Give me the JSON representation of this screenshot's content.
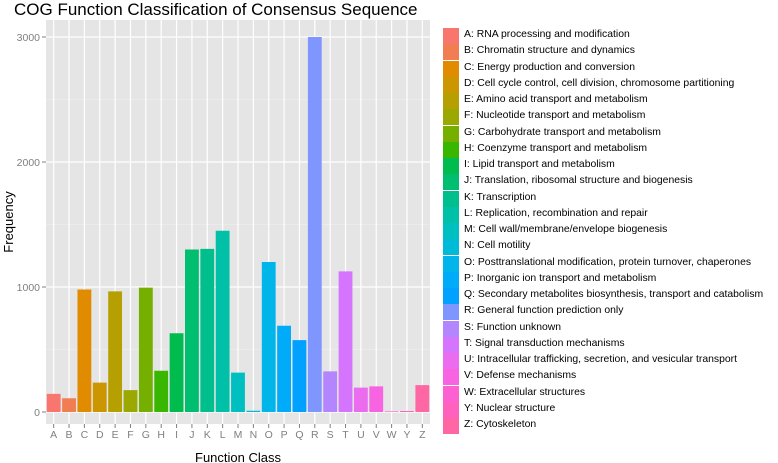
{
  "chart_data": {
    "type": "bar",
    "title": "COG Function Classification of Consensus Sequence",
    "xlabel": "Function Class",
    "ylabel": "Frequency",
    "ylim": [
      0,
      3100
    ],
    "yticks": [
      0,
      1000,
      2000,
      3000
    ],
    "grid": true,
    "legend_position": "right",
    "categories": [
      "A",
      "B",
      "C",
      "D",
      "E",
      "F",
      "G",
      "H",
      "I",
      "J",
      "K",
      "L",
      "M",
      "N",
      "O",
      "P",
      "Q",
      "R",
      "S",
      "T",
      "U",
      "V",
      "W",
      "Y",
      "Z"
    ],
    "values": [
      145,
      110,
      980,
      235,
      965,
      175,
      995,
      330,
      630,
      1300,
      1305,
      1450,
      315,
      10,
      1200,
      690,
      575,
      3000,
      325,
      1125,
      195,
      205,
      5,
      8,
      215
    ],
    "colors": [
      "#F8766D",
      "#F07E52",
      "#E08B00",
      "#CC9600",
      "#B69F00",
      "#9BA800",
      "#75B000",
      "#39B600",
      "#00BB4E",
      "#00BE70",
      "#00BF8D",
      "#00C0A7",
      "#00BFC0",
      "#00BBD7",
      "#00B5EA",
      "#00ACF9",
      "#00A1FF",
      "#7F96FF",
      "#B385FF",
      "#D575FE",
      "#EB6CEF",
      "#F763E0",
      "#FD61D1",
      "#FF62BC",
      "#FF67A4"
    ],
    "legend": [
      "A: RNA processing and modification",
      "B: Chromatin structure and dynamics",
      "C: Energy production and conversion",
      "D: Cell cycle control, cell division, chromosome partitioning",
      "E: Amino acid transport and metabolism",
      "F: Nucleotide transport and metabolism",
      "G: Carbohydrate transport and metabolism",
      "H: Coenzyme transport and metabolism",
      "I: Lipid transport and metabolism",
      "J: Translation, ribosomal structure and biogenesis",
      "K: Transcription",
      "L: Replication, recombination and repair",
      "M: Cell wall/membrane/envelope biogenesis",
      "N: Cell motility",
      "O: Posttranslational modification, protein turnover, chaperones",
      "P: Inorganic ion transport and metabolism",
      "Q: Secondary metabolites biosynthesis, transport and catabolism",
      "R: General function prediction only",
      "S: Function unknown",
      "T: Signal transduction mechanisms",
      "U: Intracellular trafficking, secretion, and vesicular transport",
      "V: Defense mechanisms",
      "W: Extracellular structures",
      "Y: Nuclear structure",
      "Z: Cytoskeleton"
    ]
  }
}
